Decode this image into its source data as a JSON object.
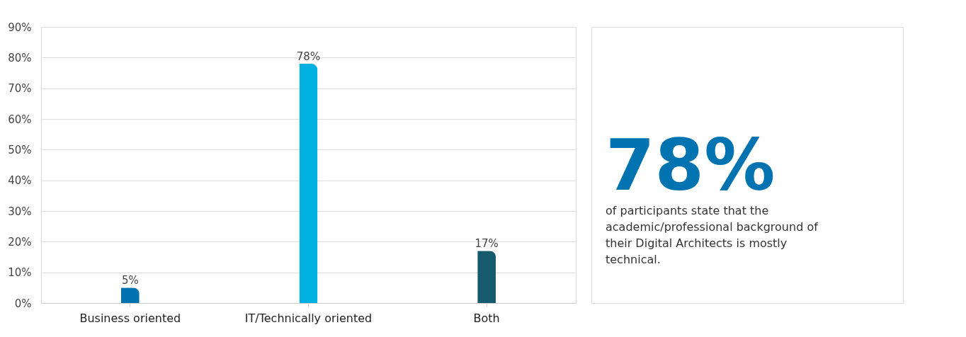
{
  "chart_data": {
    "type": "bar",
    "categories": [
      "Business oriented",
      "IT/Technically oriented",
      "Both"
    ],
    "values": [
      5,
      78,
      17
    ],
    "colors": [
      "#0073b0",
      "#00b0e0",
      "#165a6e"
    ],
    "value_labels": [
      "5%",
      "78%",
      "17%"
    ],
    "ylim": [
      0,
      90
    ],
    "yticks": [
      {
        "value": 0,
        "label": "0%"
      },
      {
        "value": 10,
        "label": "10%"
      },
      {
        "value": 20,
        "label": "20%"
      },
      {
        "value": 30,
        "label": "30%"
      },
      {
        "value": 40,
        "label": "40%"
      },
      {
        "value": 50,
        "label": "50%"
      },
      {
        "value": 60,
        "label": "60%"
      },
      {
        "value": 70,
        "label": "70%"
      },
      {
        "value": 80,
        "label": "80%"
      },
      {
        "value": 90,
        "label": "90%"
      }
    ],
    "grid": "y",
    "annotations": [
      "78%",
      "of participants state that the academic/professional background of their Digital Architects is mostly technical."
    ]
  }
}
